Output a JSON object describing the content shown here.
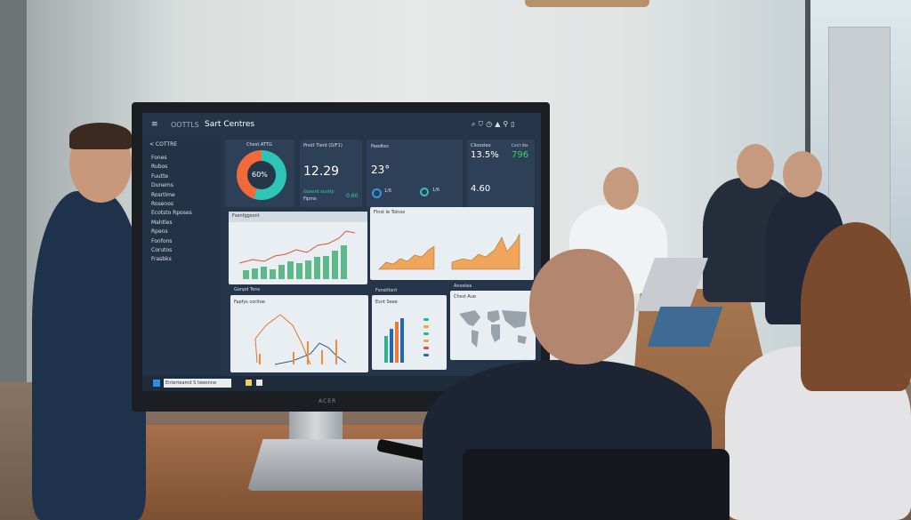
{
  "scene": {
    "description_colors": {
      "wall": "#e0e4e3",
      "table": "#9a6542",
      "screen_bg": "#26364a",
      "accent_teal": "#2ec4b6",
      "accent_orange": "#f07a3a",
      "accent_green": "#4bb37b"
    }
  },
  "monitor": {
    "brand": "ACER",
    "header": {
      "logo": "OOTTLS",
      "title": "Sart Centres",
      "icons": [
        "search-icon",
        "shield-icon",
        "clock-icon",
        "bell-icon",
        "user-icon",
        "settings-icon"
      ]
    },
    "sidebar": {
      "section": "< COTTRE",
      "items": [
        "Fones",
        "Rubos",
        "Fuutte",
        "Dunems",
        "Rosrtime",
        "Rosenos",
        "Ecotsto Rposes",
        "Mahtles",
        "Rpens",
        "Fonfons",
        "Corutos",
        "Frasbks"
      ]
    },
    "kpis": [
      {
        "title": "Chest ATTG",
        "value": "60%",
        "donut": [
          0.45,
          0.55
        ]
      },
      {
        "title": "Pnstt Tient (D/F1)",
        "value": "12.29",
        "sub": "Goasnt sustty",
        "sub2": "Fipms",
        "badge": "0,60"
      },
      {
        "title": "Peedtes",
        "value": "23°",
        "stat1": "1/6",
        "stat2": "1/6"
      },
      {
        "title": "Clioosleo",
        "value": "13.5%",
        "value2": "796",
        "value3": "4.60",
        "label2": "Cnd t 6te"
      }
    ],
    "charts": [
      {
        "title": "Fsenfggsont",
        "type": "bar+line"
      },
      {
        "title": "Flnst le Tolnos",
        "type": "area"
      },
      {
        "title": "Fapfys corltoe",
        "header": "Gonpd Tens",
        "type": "line+bar"
      },
      {
        "title": "Esnt Seee",
        "header": "Fsnstltsnt",
        "type": "bar"
      },
      {
        "title": "Chsst Aue",
        "header": "Anostea",
        "type": "map"
      }
    ],
    "taskbar": {
      "search": "Enterteamd S twesnne"
    }
  }
}
